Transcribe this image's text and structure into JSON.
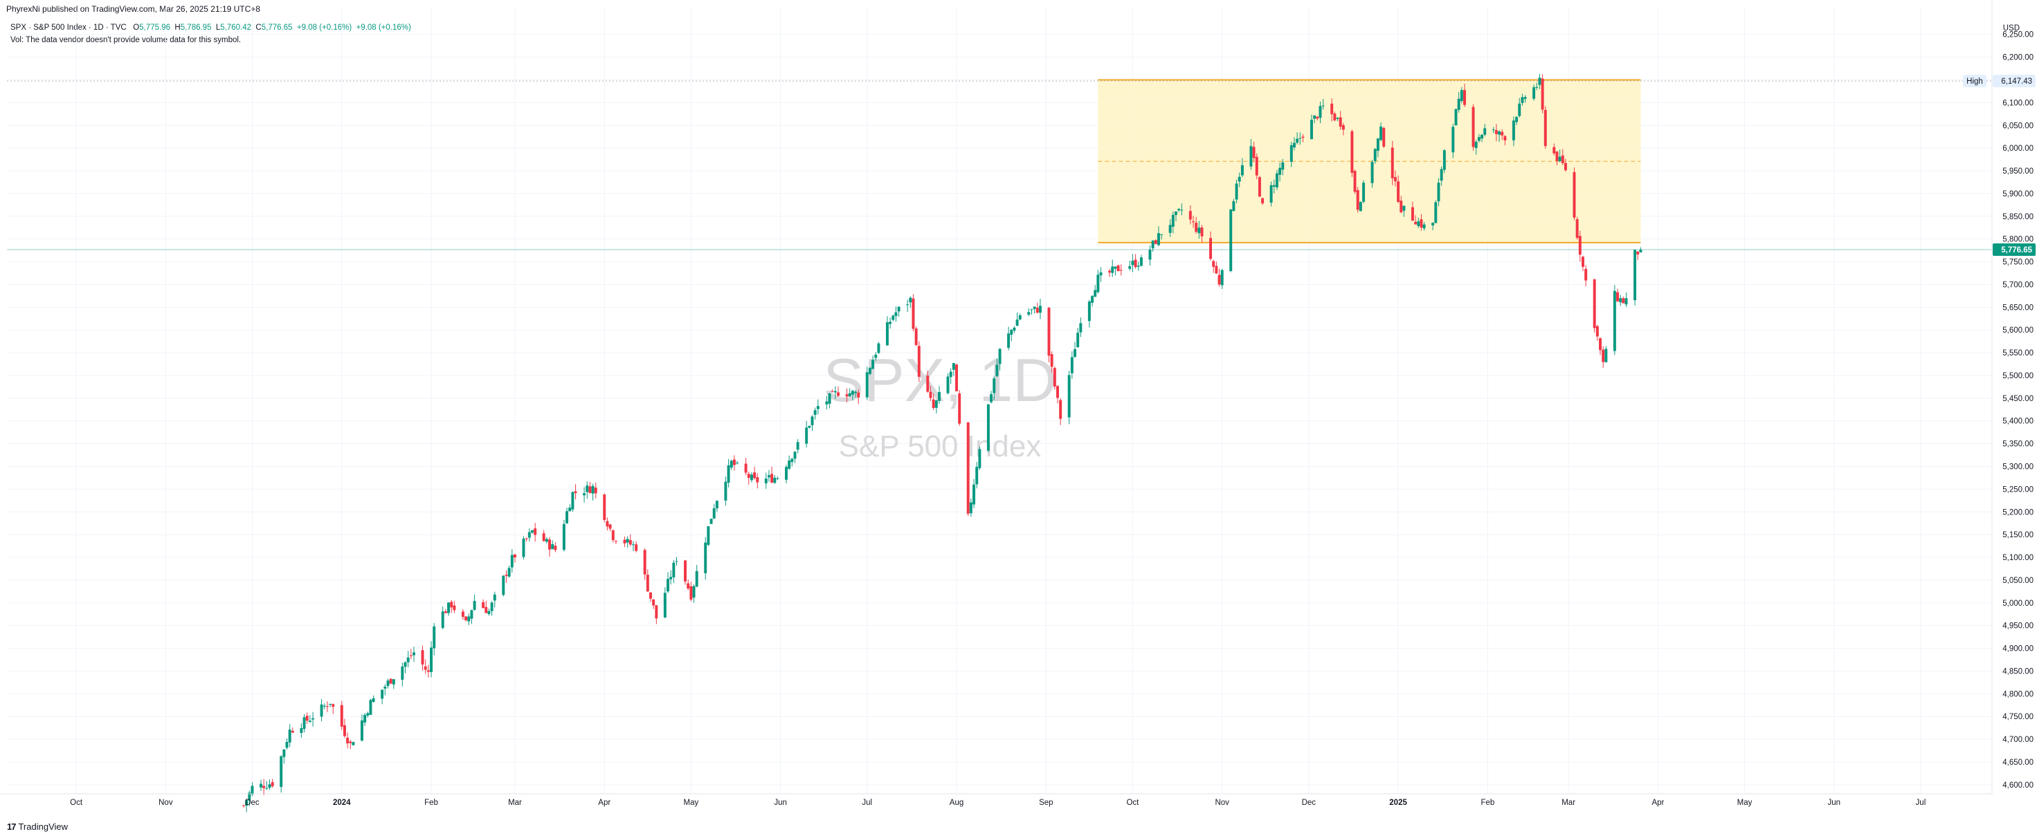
{
  "attribution": "PhyrexNi published on TradingView.com, Mar 26, 2025 21:19 UTC+8",
  "legend": {
    "symbol": "SPX · S&P 500 Index · 1D · TVC",
    "open_label": "O",
    "open": "5,775.96",
    "high_label": "H",
    "high": "5,786.95",
    "low_label": "L",
    "low": "5,760.42",
    "close_label": "C",
    "close": "5,776.65",
    "change": "+9.08 (+0.16%)",
    "change2": "+9.08 (+0.16%)",
    "volume_note": "Vol: The data vendor doesn't provide volume data for this symbol."
  },
  "watermark": {
    "symbol": "SPX, 1D",
    "name": "S&P 500 Index"
  },
  "footer": {
    "logo_mark": "17",
    "logo_text": "TradingView"
  },
  "colors": {
    "up": "#089981",
    "down": "#f23645",
    "range_fill": "#fff3c4",
    "range_line": "#f0a82a",
    "price_badge": "#089981",
    "grid": "#f0f3fa",
    "axis_text": "#131722"
  },
  "chart_data": {
    "type": "candlestick",
    "currency": "USD",
    "y_ticks": [
      "6,250.00",
      "6,200.00",
      "6,150.00",
      "6,100.00",
      "6,050.00",
      "6,000.00",
      "5,950.00",
      "5,900.00",
      "5,850.00",
      "5,800.00",
      "5,750.00",
      "5,700.00",
      "5,650.00",
      "5,600.00",
      "5,550.00",
      "5,500.00",
      "5,450.00",
      "5,400.00",
      "5,350.00",
      "5,300.00",
      "5,250.00",
      "5,200.00",
      "5,150.00",
      "5,100.00",
      "5,050.00",
      "5,000.00",
      "4,950.00",
      "4,900.00",
      "4,850.00",
      "4,800.00",
      "4,750.00",
      "4,700.00",
      "4,650.00",
      "4,600.00"
    ],
    "y_tick_values": [
      6250,
      6200,
      6150,
      6100,
      6050,
      6000,
      5950,
      5900,
      5850,
      5800,
      5750,
      5700,
      5650,
      5600,
      5550,
      5500,
      5450,
      5400,
      5350,
      5300,
      5250,
      5200,
      5150,
      5100,
      5050,
      5000,
      4950,
      4900,
      4850,
      4800,
      4750,
      4700,
      4650,
      4600
    ],
    "x_ticks": [
      {
        "label": "Oct",
        "date": "2023-10-01",
        "bold": false
      },
      {
        "label": "Nov",
        "date": "2023-11-01",
        "bold": false
      },
      {
        "label": "Dec",
        "date": "2023-12-01",
        "bold": false
      },
      {
        "label": "2024",
        "date": "2024-01-01",
        "bold": true
      },
      {
        "label": "Feb",
        "date": "2024-02-01",
        "bold": false
      },
      {
        "label": "Mar",
        "date": "2024-03-01",
        "bold": false
      },
      {
        "label": "Apr",
        "date": "2024-04-01",
        "bold": false
      },
      {
        "label": "May",
        "date": "2024-05-01",
        "bold": false
      },
      {
        "label": "Jun",
        "date": "2024-06-01",
        "bold": false
      },
      {
        "label": "Jul",
        "date": "2024-07-01",
        "bold": false
      },
      {
        "label": "Aug",
        "date": "2024-08-01",
        "bold": false
      },
      {
        "label": "Sep",
        "date": "2024-09-01",
        "bold": false
      },
      {
        "label": "Oct",
        "date": "2024-10-01",
        "bold": false
      },
      {
        "label": "Nov",
        "date": "2024-11-01",
        "bold": false
      },
      {
        "label": "Dec",
        "date": "2024-12-01",
        "bold": false
      },
      {
        "label": "2025",
        "date": "2025-01-01",
        "bold": true
      },
      {
        "label": "Feb",
        "date": "2025-02-01",
        "bold": false
      },
      {
        "label": "Mar",
        "date": "2025-03-01",
        "bold": false
      },
      {
        "label": "Apr",
        "date": "2025-04-01",
        "bold": false
      },
      {
        "label": "May",
        "date": "2025-05-01",
        "bold": false
      },
      {
        "label": "Jun",
        "date": "2025-06-01",
        "bold": false
      },
      {
        "label": "Jul",
        "date": "2025-07-01",
        "bold": false
      }
    ],
    "y_range": [
      4580,
      6280
    ],
    "x_range": [
      "2023-09-07",
      "2025-07-25"
    ],
    "high_marker": {
      "label": "High",
      "value": 6147.43,
      "text": "6,147.43"
    },
    "last_price": {
      "value": 5776.65,
      "text": "5,776.65"
    },
    "range_box": {
      "start": "2024-09-19",
      "end": "2025-03-26",
      "top": 6150,
      "bottom": 5792,
      "mid": 5971
    },
    "close_path": [
      [
        "2023-11-28",
        4554
      ],
      [
        "2023-12-01",
        4594
      ],
      [
        "2023-12-08",
        4604
      ],
      [
        "2023-12-14",
        4719
      ],
      [
        "2023-12-21",
        4746
      ],
      [
        "2023-12-28",
        4783
      ],
      [
        "2024-01-04",
        4688
      ],
      [
        "2024-01-11",
        4780
      ],
      [
        "2024-01-19",
        4839
      ],
      [
        "2024-01-26",
        4891
      ],
      [
        "2024-01-31",
        4845
      ],
      [
        "2024-02-02",
        4958
      ],
      [
        "2024-02-08",
        4997
      ],
      [
        "2024-02-13",
        4953
      ],
      [
        "2024-02-16",
        5005
      ],
      [
        "2024-02-21",
        4981
      ],
      [
        "2024-02-29",
        5096
      ],
      [
        "2024-03-07",
        5157
      ],
      [
        "2024-03-15",
        5117
      ],
      [
        "2024-03-21",
        5241
      ],
      [
        "2024-03-28",
        5254
      ],
      [
        "2024-04-04",
        5147
      ],
      [
        "2024-04-12",
        5123
      ],
      [
        "2024-04-19",
        4967
      ],
      [
        "2024-04-26",
        5099
      ],
      [
        "2024-05-01",
        5018
      ],
      [
        "2024-05-09",
        5214
      ],
      [
        "2024-05-15",
        5308
      ],
      [
        "2024-05-23",
        5267
      ],
      [
        "2024-05-31",
        5277
      ],
      [
        "2024-06-07",
        5346
      ],
      [
        "2024-06-14",
        5431
      ],
      [
        "2024-06-21",
        5464
      ],
      [
        "2024-06-28",
        5460
      ],
      [
        "2024-07-05",
        5567
      ],
      [
        "2024-07-10",
        5633
      ],
      [
        "2024-07-16",
        5667
      ],
      [
        "2024-07-19",
        5505
      ],
      [
        "2024-07-24",
        5427
      ],
      [
        "2024-07-31",
        5522
      ],
      [
        "2024-08-05",
        5186
      ],
      [
        "2024-08-09",
        5344
      ],
      [
        "2024-08-16",
        5554
      ],
      [
        "2024-08-23",
        5634
      ],
      [
        "2024-08-30",
        5648
      ],
      [
        "2024-09-06",
        5408
      ],
      [
        "2024-09-13",
        5626
      ],
      [
        "2024-09-19",
        5713
      ],
      [
        "2024-09-27",
        5738
      ],
      [
        "2024-10-04",
        5751
      ],
      [
        "2024-10-11",
        5815
      ],
      [
        "2024-10-18",
        5864
      ],
      [
        "2024-10-25",
        5808
      ],
      [
        "2024-10-31",
        5705
      ],
      [
        "2024-11-06",
        5929
      ],
      [
        "2024-11-11",
        6001
      ],
      [
        "2024-11-15",
        5870
      ],
      [
        "2024-11-22",
        5969
      ],
      [
        "2024-11-29",
        6032
      ],
      [
        "2024-12-06",
        6090
      ],
      [
        "2024-12-13",
        6051
      ],
      [
        "2024-12-18",
        5872
      ],
      [
        "2024-12-26",
        6037
      ],
      [
        "2025-01-02",
        5868
      ],
      [
        "2025-01-10",
        5827
      ],
      [
        "2025-01-13",
        5836
      ],
      [
        "2025-01-17",
        5997
      ],
      [
        "2025-01-23",
        6118
      ],
      [
        "2025-01-27",
        6012
      ],
      [
        "2025-01-31",
        6040
      ],
      [
        "2025-02-07",
        6026
      ],
      [
        "2025-02-14",
        6114
      ],
      [
        "2025-02-19",
        6144
      ],
      [
        "2025-02-21",
        6013
      ],
      [
        "2025-02-28",
        5954
      ],
      [
        "2025-03-06",
        5738
      ],
      [
        "2025-03-10",
        5614
      ],
      [
        "2025-03-13",
        5522
      ],
      [
        "2025-03-17",
        5675
      ],
      [
        "2025-03-20",
        5663
      ],
      [
        "2025-03-21",
        5667
      ],
      [
        "2025-03-24",
        5767
      ],
      [
        "2025-03-26",
        5776
      ]
    ]
  }
}
